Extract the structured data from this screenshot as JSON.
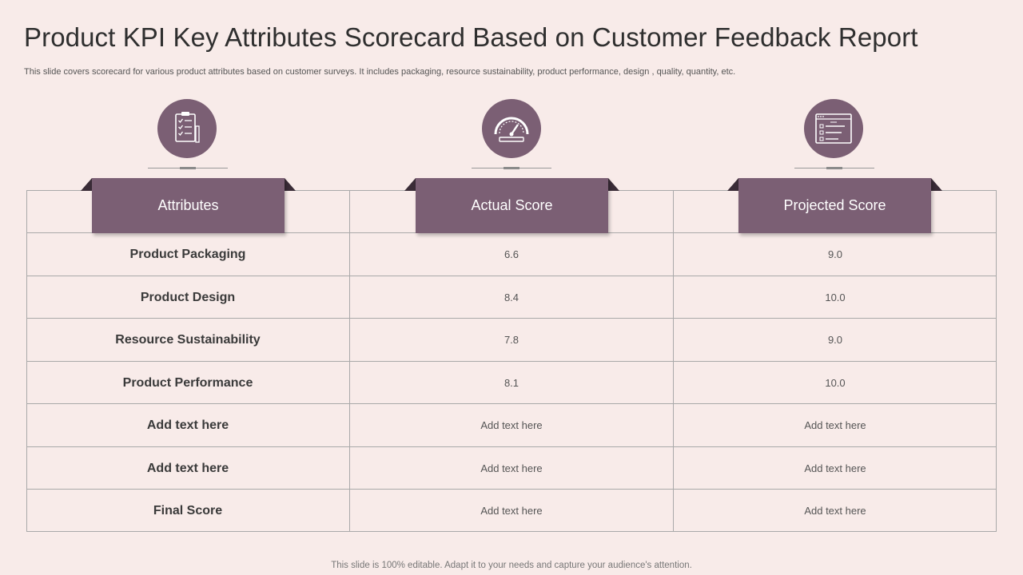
{
  "slide": {
    "title": "Product KPI Key Attributes Scorecard Based on Customer Feedback Report",
    "subtitle": "This slide covers scorecard for various product attributes based on customer surveys. It includes packaging, resource sustainability, product performance, design , quality, quantity, etc.",
    "footer": "This slide is 100% editable. Adapt it to your needs and capture your audience's attention."
  },
  "colors": {
    "background": "#f8ebe9",
    "accent": "#7b5f74",
    "fold": "#3a2c37",
    "grid": "#a9a9a9"
  },
  "icons": [
    "clipboard-checklist-icon",
    "speedometer-icon",
    "score-form-icon"
  ],
  "table": {
    "headers": [
      "Attributes",
      "Actual Score",
      "Projected Score"
    ],
    "rows": [
      {
        "attribute": "Product Packaging",
        "actual": "6.6",
        "projected": "9.0"
      },
      {
        "attribute": "Product Design",
        "actual": "8.4",
        "projected": "10.0"
      },
      {
        "attribute": "Resource Sustainability",
        "actual": "7.8",
        "projected": "9.0"
      },
      {
        "attribute": "Product Performance",
        "actual": "8.1",
        "projected": "10.0"
      },
      {
        "attribute": "Add text here",
        "actual": "Add text here",
        "projected": "Add text here"
      },
      {
        "attribute": "Add text here",
        "actual": "Add text here",
        "projected": "Add text here"
      },
      {
        "attribute": "Final Score",
        "actual": "Add text here",
        "projected": "Add text here"
      }
    ]
  }
}
